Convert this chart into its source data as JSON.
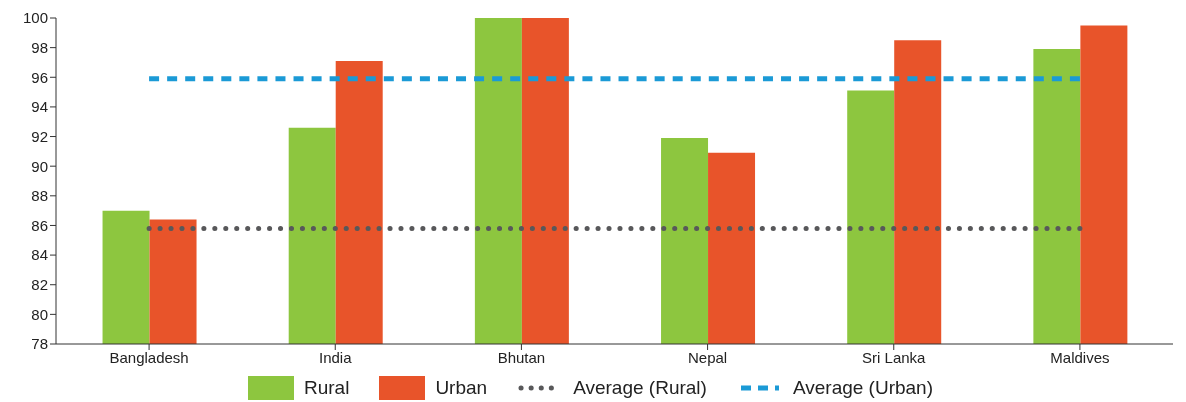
{
  "chart_data": {
    "type": "bar",
    "categories": [
      "Bangladesh",
      "India",
      "Bhutan",
      "Nepal",
      "Sri Lanka",
      "Maldives"
    ],
    "series": [
      {
        "name": "Rural",
        "color": "#8dc63f",
        "values": [
          87.0,
          92.6,
          100,
          91.9,
          95.1,
          97.9
        ]
      },
      {
        "name": "Urban",
        "color": "#e8542a",
        "values": [
          86.4,
          97.1,
          100,
          90.9,
          98.5,
          99.5
        ]
      },
      {
        "name": "Average (Rural)",
        "type": "line",
        "color": "#58585a",
        "line_style": "dotted",
        "values": [
          85.8,
          85.8,
          85.8,
          85.8,
          85.8,
          85.8
        ]
      },
      {
        "name": "Average (Urban)",
        "type": "line",
        "color": "#1b9ad6",
        "line_style": "dashed",
        "values": [
          95.9,
          95.9,
          95.9,
          95.9,
          95.9,
          95.9
        ]
      }
    ],
    "ylim": [
      78,
      100
    ],
    "yticks": [
      78,
      80,
      82,
      84,
      86,
      88,
      90,
      92,
      94,
      96,
      98,
      100
    ],
    "grid": false,
    "legend": "bottom",
    "marker": "none"
  }
}
